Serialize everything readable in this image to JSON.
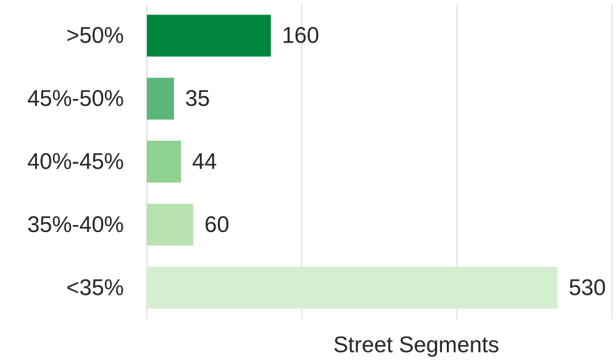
{
  "chart_data": {
    "type": "bar",
    "orientation": "horizontal",
    "categories": [
      ">50%",
      "45%-50%",
      "40%-45%",
      "35%-40%",
      "<35%"
    ],
    "values": [
      160,
      35,
      44,
      60,
      530
    ],
    "colors": [
      "#00873e",
      "#5bb677",
      "#8fd18e",
      "#b8e2b0",
      "#d6eed0"
    ],
    "xlabel": "Street Segments",
    "xlim": [
      0,
      600
    ],
    "xticks": [
      0,
      200,
      400,
      600
    ],
    "grid": true
  }
}
